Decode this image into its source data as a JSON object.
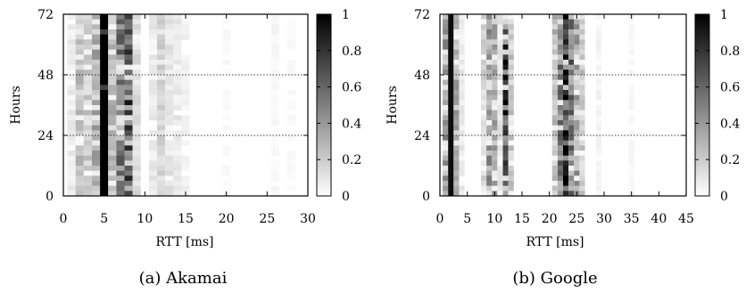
{
  "figure": {
    "caption_a": "(a)  Akamai",
    "caption_b": "(b)  Google"
  },
  "chart_data": [
    {
      "type": "heatmap",
      "title": "",
      "caption": "(a)  Akamai",
      "xlabel": "RTT [ms]",
      "ylabel": "Hours",
      "xlim": [
        0,
        30
      ],
      "ylim": [
        0,
        72
      ],
      "xticks": [
        "0",
        "5",
        "10",
        "15",
        "20",
        "25",
        "30"
      ],
      "yticks": [
        "0",
        "24",
        "48",
        "72"
      ],
      "colorbar": {
        "range": [
          0,
          1
        ],
        "ticks": [
          "0",
          "0.2",
          "0.4",
          "0.6",
          "0.8",
          "1"
        ]
      },
      "reference_lines_y": [
        24,
        48
      ],
      "grid": false,
      "bin_width_ms": 1,
      "column_intensity": [
        {
          "rtt_ms": 1,
          "value": 0.08
        },
        {
          "rtt_ms": 2,
          "value": 0.22
        },
        {
          "rtt_ms": 3,
          "value": 0.18
        },
        {
          "rtt_ms": 4,
          "value": 0.28
        },
        {
          "rtt_ms": 5,
          "value": 1.0
        },
        {
          "rtt_ms": 6,
          "value": 0.25
        },
        {
          "rtt_ms": 7,
          "value": 0.45
        },
        {
          "rtt_ms": 8,
          "value": 0.6
        },
        {
          "rtt_ms": 9,
          "value": 0.12
        },
        {
          "rtt_ms": 11,
          "value": 0.08
        },
        {
          "rtt_ms": 12,
          "value": 0.15
        },
        {
          "rtt_ms": 13,
          "value": 0.1
        },
        {
          "rtt_ms": 14,
          "value": 0.08
        },
        {
          "rtt_ms": 15,
          "value": 0.05
        },
        {
          "rtt_ms": 20,
          "value": 0.02
        },
        {
          "rtt_ms": 26,
          "value": 0.03
        },
        {
          "rtt_ms": 28,
          "value": 0.02
        }
      ]
    },
    {
      "type": "heatmap",
      "title": "",
      "caption": "(b)  Google",
      "xlabel": "RTT [ms]",
      "ylabel": "Hours",
      "xlim": [
        0,
        45
      ],
      "ylim": [
        0,
        72
      ],
      "xticks": [
        "0",
        "5",
        "10",
        "15",
        "20",
        "25",
        "30",
        "35",
        "40",
        "45"
      ],
      "yticks": [
        "0",
        "24",
        "48",
        "72"
      ],
      "colorbar": {
        "range": [
          0,
          1
        ],
        "ticks": [
          "0",
          "0.2",
          "0.4",
          "0.6",
          "0.8",
          "1"
        ]
      },
      "reference_lines_y": [
        24,
        48
      ],
      "grid": false,
      "bin_width_ms": 1,
      "column_intensity": [
        {
          "rtt_ms": 1,
          "value": 0.35
        },
        {
          "rtt_ms": 2,
          "value": 0.95
        },
        {
          "rtt_ms": 3,
          "value": 0.3
        },
        {
          "rtt_ms": 4,
          "value": 0.08
        },
        {
          "rtt_ms": 8,
          "value": 0.15
        },
        {
          "rtt_ms": 9,
          "value": 0.35
        },
        {
          "rtt_ms": 10,
          "value": 0.3
        },
        {
          "rtt_ms": 11,
          "value": 0.1
        },
        {
          "rtt_ms": 12,
          "value": 0.7
        },
        {
          "rtt_ms": 13,
          "value": 0.2
        },
        {
          "rtt_ms": 21,
          "value": 0.25
        },
        {
          "rtt_ms": 22,
          "value": 0.45
        },
        {
          "rtt_ms": 23,
          "value": 0.85
        },
        {
          "rtt_ms": 24,
          "value": 0.5
        },
        {
          "rtt_ms": 25,
          "value": 0.35
        },
        {
          "rtt_ms": 26,
          "value": 0.2
        },
        {
          "rtt_ms": 29,
          "value": 0.04
        },
        {
          "rtt_ms": 35,
          "value": 0.03
        }
      ]
    }
  ]
}
